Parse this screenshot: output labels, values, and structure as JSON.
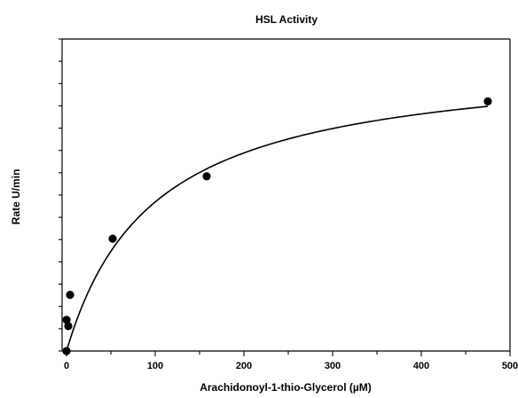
{
  "chart_data": {
    "type": "scatter",
    "title": "HSL Activity",
    "xlabel": "Arachidonoyl-1-thio-Glycerol (µM)",
    "ylabel": "Rate U/min",
    "xlim": [
      0,
      500
    ],
    "ylim": [
      0,
      50
    ],
    "x_ticks": [
      0,
      100,
      200,
      300,
      400,
      500
    ],
    "y_ticks_labeled": false,
    "y_minor_ticks": 14,
    "grid": false,
    "legend": "none",
    "series": [
      {
        "points": [
          {
            "x": 0,
            "y": 0
          },
          {
            "x": 0,
            "y": 5
          },
          {
            "x": 2,
            "y": 4
          },
          {
            "x": 4,
            "y": 9
          },
          {
            "x": 52,
            "y": 18
          },
          {
            "x": 158,
            "y": 28
          },
          {
            "x": 475,
            "y": 40
          }
        ]
      }
    ],
    "fit_curve": {
      "model": "michaelis-menten",
      "vmax": 47.3,
      "km": 98
    },
    "colors": {
      "marker": "#000000",
      "line": "#000000"
    }
  }
}
